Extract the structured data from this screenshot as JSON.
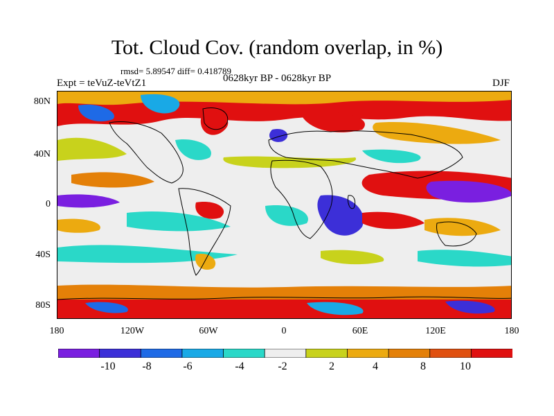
{
  "title": "Tot. Cloud Cov. (random overlap, in %)",
  "stats": "rmsd= 5.89547 diff= 0.418789",
  "expt": "Expt = teVuZ-teVtZ1",
  "period": "0628kyr BP - 0628kyr BP",
  "season": "DJF",
  "map": {
    "y_ticks": [
      "80N",
      "40N",
      "0",
      "40S",
      "80S"
    ],
    "x_ticks": [
      "180",
      "120W",
      "60W",
      "0",
      "60E",
      "120E",
      "180"
    ]
  },
  "colorbar": {
    "colors": [
      "#7a1fe0",
      "#3c2fd8",
      "#1e6ae6",
      "#19a9e6",
      "#2ad8c8",
      "#eeeeee",
      "#c8d21c",
      "#ecaa10",
      "#e48008",
      "#e05010",
      "#e01010"
    ],
    "labels": [
      "-10",
      "-8",
      "-6",
      "-4",
      "-2",
      "2",
      "4",
      "8",
      "10"
    ]
  },
  "colors": {
    "purple": "#7a1fe0",
    "blue": "#3c2fd8",
    "mid_blue": "#1e6ae6",
    "light_blue": "#19a9e6",
    "cyan": "#2ad8c8",
    "neutral": "#eeeeee",
    "yellow_green": "#c8d21c",
    "orange": "#ecaa10",
    "dark_orange": "#e48008",
    "red_orange": "#e05010",
    "red": "#e01010"
  }
}
